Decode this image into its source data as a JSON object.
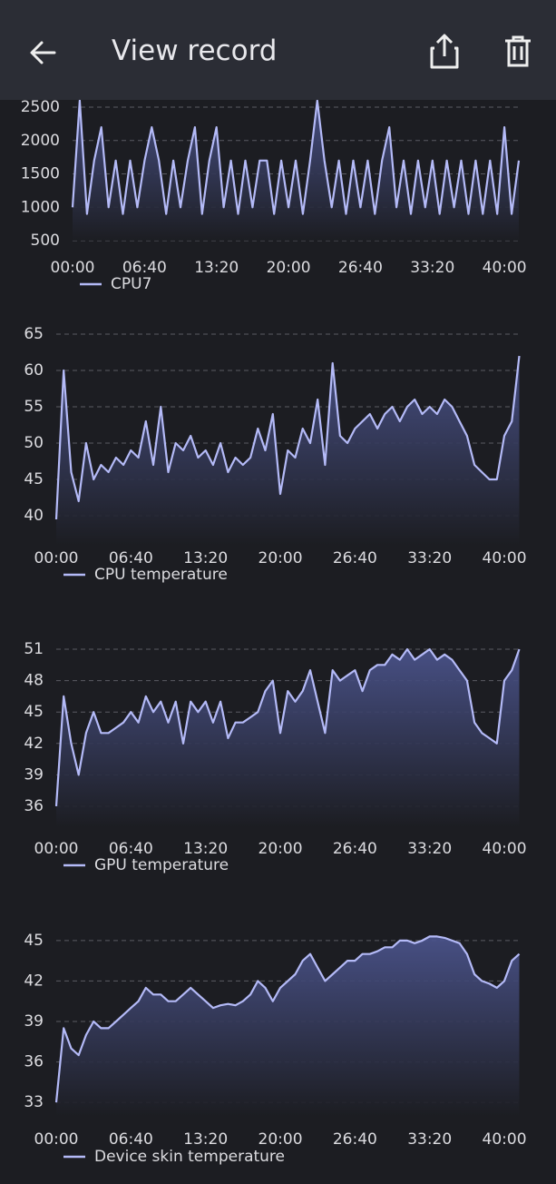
{
  "header": {
    "title": "View record"
  },
  "chart_data": [
    {
      "type": "line",
      "series": [
        {
          "name": "CPU7",
          "color": "#b4baf7",
          "values": [
            1000,
            2600,
            900,
            1700,
            2200,
            1000,
            1700,
            900,
            1700,
            1000,
            1700,
            2200,
            1700,
            900,
            1700,
            1000,
            1700,
            2200,
            900,
            1700,
            2200,
            1000,
            1700,
            900,
            1700,
            1000,
            1700,
            1700,
            900,
            1700,
            1000,
            1700,
            900,
            1700,
            2600,
            1700,
            1000,
            1700,
            900,
            1700,
            1000,
            1700,
            900,
            1700,
            2200,
            1000,
            1700,
            900,
            1700,
            1000,
            1700,
            900,
            1700,
            1000,
            1700,
            900,
            1700,
            900,
            1700,
            900,
            2200,
            900,
            1700
          ]
        }
      ],
      "x": [
        0,
        40,
        80,
        120,
        160,
        200,
        240,
        280,
        320,
        360,
        400,
        440,
        480,
        520,
        560,
        600,
        640,
        680,
        720,
        760,
        800,
        840,
        880,
        920,
        960,
        1000,
        1040,
        1080,
        1120,
        1160,
        1200,
        1240,
        1280,
        1320,
        1360,
        1400,
        1440,
        1480,
        1520,
        1560,
        1600,
        1640,
        1680,
        1720,
        1760,
        1800,
        1840,
        1880,
        1920,
        1960,
        2000,
        2040,
        2080,
        2120,
        2160,
        2200,
        2240,
        2280,
        2320,
        2360,
        2400,
        2440,
        2480
      ],
      "xlim": [
        0,
        2480
      ],
      "ylim": [
        500,
        2700
      ],
      "yticks": [
        500,
        1000,
        1500,
        2000,
        2500
      ],
      "xticks": [
        {
          "value": 0,
          "label": "00:00"
        },
        {
          "value": 400,
          "label": "06:40"
        },
        {
          "value": 800,
          "label": "13:20"
        },
        {
          "value": 1200,
          "label": "20:00"
        },
        {
          "value": 1600,
          "label": "26:40"
        },
        {
          "value": 2000,
          "label": "33:20"
        },
        {
          "value": 2400,
          "label": "40:00"
        }
      ],
      "grid": true
    },
    {
      "type": "line",
      "series": [
        {
          "name": "CPU temperature",
          "color": "#b4baf7",
          "values": [
            39.5,
            60,
            46,
            42,
            50,
            45,
            47,
            46,
            48,
            47,
            49,
            48,
            53,
            47,
            55,
            46,
            50,
            49,
            51,
            48,
            49,
            47,
            50,
            46,
            48,
            47,
            48,
            52,
            49,
            54,
            43,
            49,
            48,
            52,
            50,
            56,
            47,
            61,
            51,
            50,
            52,
            53,
            54,
            52,
            54,
            55,
            53,
            55,
            56,
            54,
            55,
            54,
            56,
            55,
            53,
            51,
            47,
            46,
            45,
            45,
            51,
            53,
            62
          ]
        }
      ],
      "x": [
        0,
        40,
        80,
        120,
        160,
        200,
        240,
        280,
        320,
        360,
        400,
        440,
        480,
        520,
        560,
        600,
        640,
        680,
        720,
        760,
        800,
        840,
        880,
        920,
        960,
        1000,
        1040,
        1080,
        1120,
        1160,
        1200,
        1240,
        1280,
        1320,
        1360,
        1400,
        1440,
        1480,
        1520,
        1560,
        1600,
        1640,
        1680,
        1720,
        1760,
        1800,
        1840,
        1880,
        1920,
        1960,
        2000,
        2040,
        2080,
        2120,
        2160,
        2200,
        2240,
        2280,
        2320,
        2360,
        2400,
        2440,
        2480
      ],
      "xlim": [
        0,
        2480
      ],
      "ylim": [
        36,
        66
      ],
      "yticks": [
        40,
        45,
        50,
        55,
        60,
        65
      ],
      "xticks": [
        {
          "value": 0,
          "label": "00:00"
        },
        {
          "value": 400,
          "label": "06:40"
        },
        {
          "value": 800,
          "label": "13:20"
        },
        {
          "value": 1200,
          "label": "20:00"
        },
        {
          "value": 1600,
          "label": "26:40"
        },
        {
          "value": 2000,
          "label": "33:20"
        },
        {
          "value": 2400,
          "label": "40:00"
        }
      ],
      "grid": true
    },
    {
      "type": "line",
      "series": [
        {
          "name": "GPU temperature",
          "color": "#b4baf7",
          "values": [
            36,
            46.5,
            42,
            39,
            43,
            45,
            43,
            43,
            43.5,
            44,
            45,
            44,
            46.5,
            45,
            46,
            44,
            46,
            42,
            46,
            45,
            46,
            44,
            46,
            42.5,
            44,
            44,
            44.5,
            45,
            47,
            48,
            43,
            47,
            46,
            47,
            49,
            46,
            43,
            49,
            48,
            48.5,
            49,
            47,
            49,
            49.5,
            49.5,
            50.5,
            50,
            51,
            50,
            50.5,
            51,
            50,
            50.5,
            50,
            49,
            48,
            44,
            43,
            42.5,
            42,
            48,
            49,
            51
          ]
        }
      ],
      "x": [
        0,
        40,
        80,
        120,
        160,
        200,
        240,
        280,
        320,
        360,
        400,
        440,
        480,
        520,
        560,
        600,
        640,
        680,
        720,
        760,
        800,
        840,
        880,
        920,
        960,
        1000,
        1040,
        1080,
        1120,
        1160,
        1200,
        1240,
        1280,
        1320,
        1360,
        1400,
        1440,
        1480,
        1520,
        1560,
        1600,
        1640,
        1680,
        1720,
        1760,
        1800,
        1840,
        1880,
        1920,
        1960,
        2000,
        2040,
        2080,
        2120,
        2160,
        2200,
        2240,
        2280,
        2320,
        2360,
        2400,
        2440,
        2480
      ],
      "xlim": [
        0,
        2480
      ],
      "ylim": [
        34,
        52
      ],
      "yticks": [
        36,
        39,
        42,
        45,
        48,
        51
      ],
      "xticks": [
        {
          "value": 0,
          "label": "00:00"
        },
        {
          "value": 400,
          "label": "06:40"
        },
        {
          "value": 800,
          "label": "13:20"
        },
        {
          "value": 1200,
          "label": "20:00"
        },
        {
          "value": 1600,
          "label": "26:40"
        },
        {
          "value": 2000,
          "label": "33:20"
        },
        {
          "value": 2400,
          "label": "40:00"
        }
      ],
      "grid": true
    },
    {
      "type": "line",
      "series": [
        {
          "name": "Device skin temperature",
          "color": "#b4baf7",
          "values": [
            33,
            38.5,
            37,
            36.5,
            38,
            39,
            38.5,
            38.5,
            39,
            39.5,
            40,
            40.5,
            41.5,
            41,
            41,
            40.5,
            40.5,
            41,
            41.5,
            41,
            40.5,
            40,
            40.2,
            40.3,
            40.2,
            40.5,
            41,
            42,
            41.5,
            40.5,
            41.5,
            42,
            42.5,
            43.5,
            44,
            43,
            42,
            42.5,
            43,
            43.5,
            43.5,
            44,
            44,
            44.2,
            44.5,
            44.5,
            45,
            45,
            44.8,
            45,
            45.3,
            45.3,
            45.2,
            45,
            44.8,
            44,
            42.5,
            42,
            41.8,
            41.5,
            42,
            43.5,
            44
          ]
        }
      ],
      "x": [
        0,
        40,
        80,
        120,
        160,
        200,
        240,
        280,
        320,
        360,
        400,
        440,
        480,
        520,
        560,
        600,
        640,
        680,
        720,
        760,
        800,
        840,
        880,
        920,
        960,
        1000,
        1040,
        1080,
        1120,
        1160,
        1200,
        1240,
        1280,
        1320,
        1360,
        1400,
        1440,
        1480,
        1520,
        1560,
        1600,
        1640,
        1680,
        1720,
        1760,
        1800,
        1840,
        1880,
        1920,
        1960,
        2000,
        2040,
        2080,
        2120,
        2160,
        2200,
        2240,
        2280,
        2320,
        2360,
        2400,
        2440,
        2480
      ],
      "xlim": [
        0,
        2480
      ],
      "ylim": [
        32,
        46
      ],
      "yticks": [
        33,
        36,
        39,
        42,
        45
      ],
      "xticks": [
        {
          "value": 0,
          "label": "00:00"
        },
        {
          "value": 400,
          "label": "06:40"
        },
        {
          "value": 800,
          "label": "13:20"
        },
        {
          "value": 1200,
          "label": "20:00"
        },
        {
          "value": 1600,
          "label": "26:40"
        },
        {
          "value": 2000,
          "label": "33:20"
        },
        {
          "value": 2400,
          "label": "40:00"
        }
      ],
      "grid": true
    }
  ]
}
